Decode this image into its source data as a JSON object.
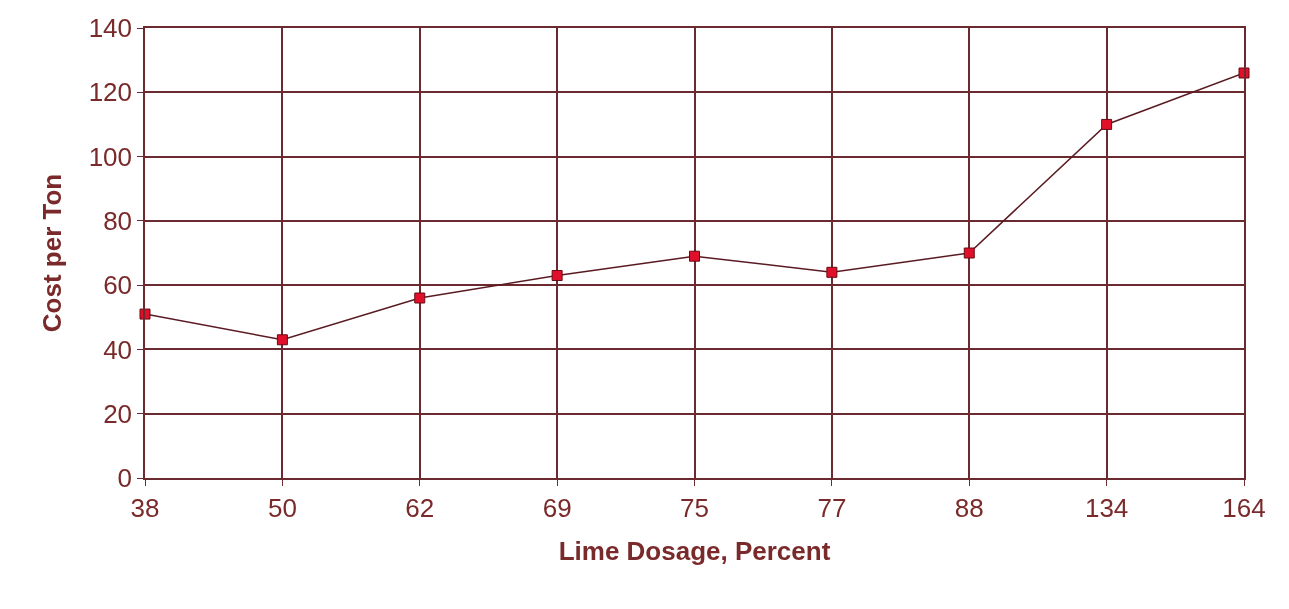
{
  "chart_data": {
    "type": "line",
    "xlabel": "Lime Dosage, Percent",
    "ylabel": "Cost per Ton",
    "categories": [
      "38",
      "50",
      "62",
      "69",
      "75",
      "77",
      "88",
      "134",
      "164"
    ],
    "series": [
      {
        "color": "#e0102a",
        "values": [
          51,
          43,
          56,
          63,
          69,
          64,
          70,
          110,
          126
        ]
      }
    ],
    "ylim": [
      0,
      140
    ],
    "yticks": [
      0,
      20,
      40,
      60,
      80,
      100,
      120,
      140
    ],
    "grid": true,
    "marker": "square",
    "line_style": "solid"
  }
}
